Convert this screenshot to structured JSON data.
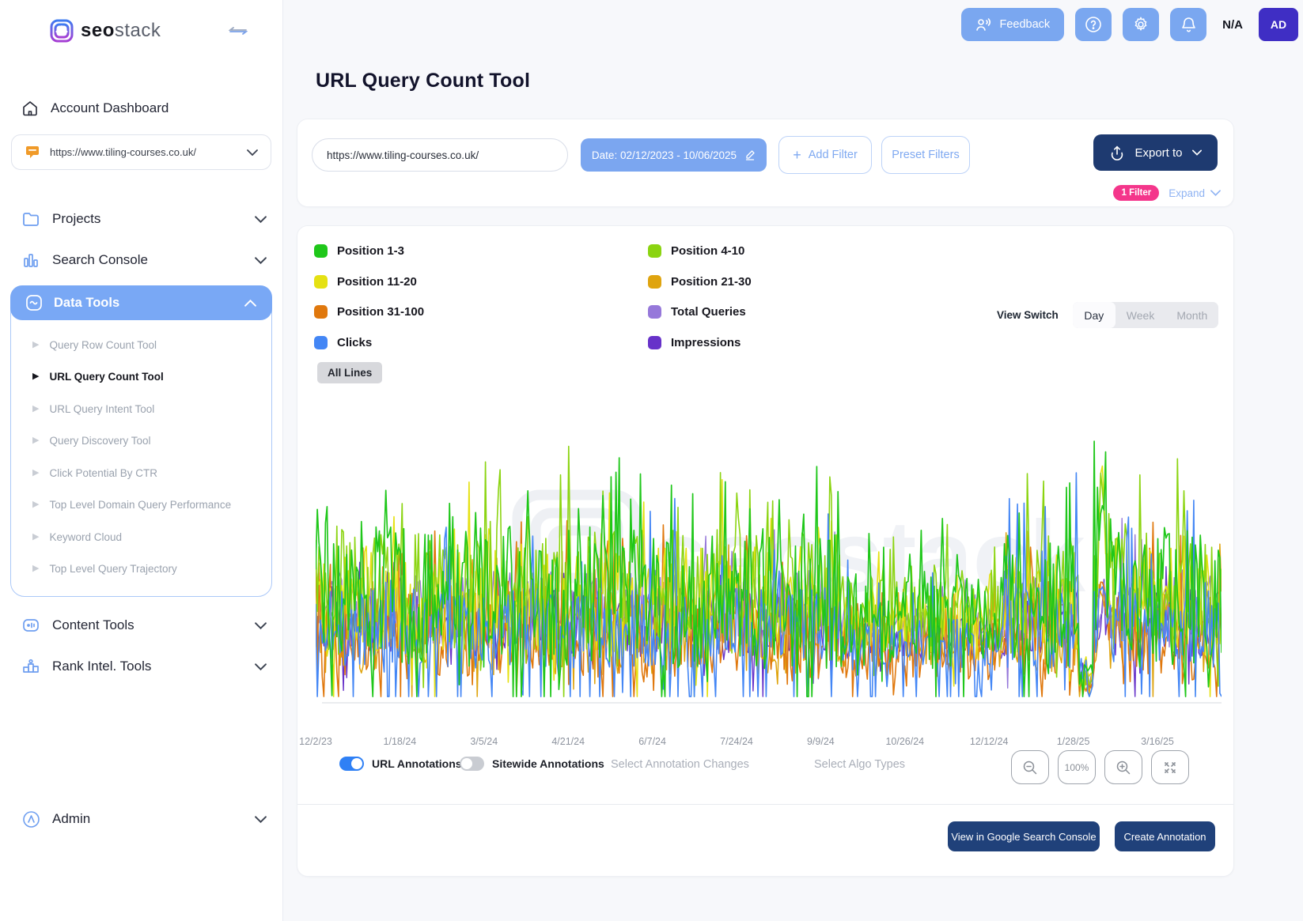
{
  "brand": {
    "name_bold": "seo",
    "name_light": "stack"
  },
  "header": {
    "feedback_label": "Feedback",
    "plan_label": "N/A",
    "avatar_label": "AD"
  },
  "page": {
    "title": "URL Query Count Tool"
  },
  "sidebar": {
    "account_dashboard": "Account Dashboard",
    "site_selector_value": "https://www.tiling-courses.co.uk/",
    "projects_label": "Projects",
    "search_console_label": "Search Console",
    "data_tools_label": "Data Tools",
    "data_tools_items": [
      {
        "label": "Query Row Count Tool",
        "active": false
      },
      {
        "label": "URL Query Count Tool",
        "active": true
      },
      {
        "label": "URL Query Intent Tool",
        "active": false
      },
      {
        "label": "Query Discovery Tool",
        "active": false
      },
      {
        "label": "Click Potential By CTR",
        "active": false
      },
      {
        "label": "Top Level Domain Query Performance",
        "active": false
      },
      {
        "label": "Keyword Cloud",
        "active": false
      },
      {
        "label": "Top Level Query Trajectory",
        "active": false
      }
    ],
    "content_tools_label": "Content Tools",
    "rank_intel_label": "Rank Intel. Tools",
    "admin_label": "Admin"
  },
  "filters": {
    "url_value": "https://www.tiling-courses.co.uk/",
    "date_label": "Date: 02/12/2023 - 10/06/2025",
    "add_filter_label": "Add Filter",
    "preset_filters_label": "Preset Filters",
    "export_label": "Export to",
    "filter_badge": "1 Filter",
    "expand_label": "Expand"
  },
  "chart_controls": {
    "view_switch_label": "View Switch",
    "view_options": [
      "Day",
      "Week",
      "Month"
    ],
    "active_view": "Day",
    "all_lines_label": "All Lines",
    "url_annotations_label": "URL Annotations",
    "url_annotations_on": true,
    "sitewide_annotations_label": "Sitewide Annotations",
    "sitewide_annotations_on": false,
    "select_annotation_changes_placeholder": "Select Annotation Changes",
    "select_algo_types_placeholder": "Select Algo Types",
    "zoom_level": "100%"
  },
  "footer": {
    "view_gsc_label": "View in Google Search Console",
    "create_annotation_label": "Create Annotation"
  },
  "colors": {
    "accent_blue": "#7aa7f0",
    "navy": "#1e3a70",
    "pink_badge": "#f4368b",
    "active_nav": "#79a8f5",
    "avatar_indigo": "#3f2ec4"
  },
  "chart_data": {
    "type": "line",
    "title": "URL Query Count Tool — daily query counts per position bucket",
    "granularity": "Day",
    "date_range": "02/12/2023 - 10/06/2025",
    "x_tick_labels": [
      "12/2/23",
      "1/18/24",
      "3/5/24",
      "4/21/24",
      "6/7/24",
      "7/24/24",
      "9/9/24",
      "10/26/24",
      "12/12/24",
      "1/28/25",
      "3/16/25"
    ],
    "y_axis": {
      "visible": false,
      "note": "no y-axis ticks or gridlines shown; values are relative daily counts"
    },
    "legend_position": "top",
    "legend_order": [
      "Position 1-3",
      "Position 4-10",
      "Position 11-20",
      "Position 21-30",
      "Position 31-100",
      "Total Queries",
      "Clicks",
      "Impressions"
    ],
    "anomaly_note": "large synchronized spike across position/query lines near 1/28/25 reaching chart top, followed by a brief drop",
    "render_seed": 11,
    "points_per_series": 556,
    "series": [
      {
        "name": "Impressions",
        "color": "#6732c9",
        "base": 0.3,
        "noise": 0.22,
        "spike_prob": 0.06,
        "spike_mag": 0.25,
        "down_prob": 0.05,
        "down_mag": 0.25,
        "anomaly": 0.32,
        "width": 1.4
      },
      {
        "name": "Total Queries",
        "color": "#9678da",
        "base": 0.36,
        "noise": 0.24,
        "spike_prob": 0.06,
        "spike_mag": 0.22,
        "down_prob": 0.05,
        "down_mag": 0.25,
        "anomaly": 0.36,
        "width": 1.4
      },
      {
        "name": "Position 21-30",
        "color": "#dfa40f",
        "base": 0.28,
        "noise": 0.3,
        "spike_prob": 0.09,
        "spike_mag": 0.28,
        "down_prob": 0.06,
        "down_mag": 0.24,
        "anomaly": 0.46,
        "width": 1.5
      },
      {
        "name": "Position 31-100",
        "color": "#e0780d",
        "base": 0.24,
        "noise": 0.3,
        "spike_prob": 0.12,
        "spike_mag": 0.36,
        "down_prob": 0.06,
        "down_mag": 0.22,
        "anomaly": 0.55,
        "width": 1.6
      },
      {
        "name": "Position 11-20",
        "color": "#e5e113",
        "base": 0.38,
        "noise": 0.36,
        "spike_prob": 0.11,
        "spike_mag": 0.32,
        "down_prob": 0.07,
        "down_mag": 0.3,
        "anomaly": 1.0,
        "width": 1.6
      },
      {
        "name": "Position 4-10",
        "color": "#8bd411",
        "base": 0.42,
        "noise": 0.4,
        "spike_prob": 0.12,
        "spike_mag": 0.36,
        "down_prob": 0.08,
        "down_mag": 0.34,
        "anomaly": 0.95,
        "width": 1.6
      },
      {
        "name": "Clicks",
        "color": "#4386f5",
        "base": 0.28,
        "noise": 0.26,
        "spike_prob": 0.08,
        "spike_mag": 0.5,
        "down_prob": 0.12,
        "down_mag": 0.6,
        "anomaly": 0.5,
        "width": 1.6
      },
      {
        "name": "Position 1-3",
        "color": "#1fc71a",
        "base": 0.4,
        "noise": 0.46,
        "spike_prob": 0.14,
        "spike_mag": 0.42,
        "down_prob": 0.12,
        "down_mag": 0.5,
        "anomaly": 0.9,
        "width": 1.7
      }
    ],
    "legend_colors": {
      "Position 1-3": "#1fc71a",
      "Position 4-10": "#8bd411",
      "Position 11-20": "#e5e113",
      "Position 21-30": "#dfa40f",
      "Position 31-100": "#e0780d",
      "Total Queries": "#9678da",
      "Clicks": "#4386f5",
      "Impressions": "#6732c9"
    }
  }
}
